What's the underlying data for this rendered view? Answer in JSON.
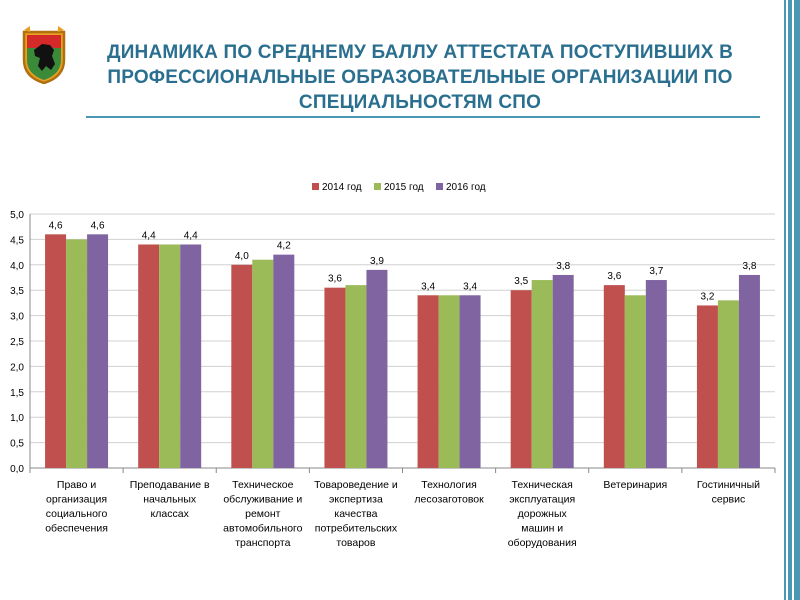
{
  "title": "Динамика по среднему баллу аттестата поступивших в профессиональные образовательные организации по специальностям СПО",
  "colors": {
    "title": "#2a6f8f",
    "stripe": "#4a98b4",
    "series": [
      "#c0504d",
      "#9bbb59",
      "#8064a2"
    ],
    "emblem_frame": "#e8a020",
    "emblem_green": "#3a8a3a",
    "emblem_red": "#d42a2a"
  },
  "emblem": {
    "name": "coat-of-arms-of-karelia"
  },
  "chart_data": {
    "type": "bar",
    "title": "",
    "xlabel": "",
    "ylabel": "",
    "ylim": [
      0,
      5
    ],
    "yticks": [
      "0,0",
      "0,5",
      "1,0",
      "1,5",
      "2,0",
      "2,5",
      "3,0",
      "3,5",
      "4,0",
      "4,5",
      "5,0"
    ],
    "grid": true,
    "legend": "top-center",
    "categories": [
      [
        "Право и",
        "организация",
        "социального",
        "обеспечения"
      ],
      [
        "Преподавание в",
        "начальных",
        "классах"
      ],
      [
        "Техническое",
        "обслуживание и",
        "ремонт",
        "автомобильного",
        "транспорта"
      ],
      [
        "Товароведение и",
        "экспертиза",
        "качества",
        "потребительских",
        "товаров"
      ],
      [
        "Технология",
        "лесозаготовок"
      ],
      [
        "Техническая",
        "эксплуатация",
        "дорожных",
        "машин и",
        "оборудования"
      ],
      [
        "Ветеринария"
      ],
      [
        "Гостиничный",
        "сервис"
      ]
    ],
    "series": [
      {
        "name": "2014 год",
        "values": [
          4.6,
          4.4,
          4.0,
          3.55,
          3.4,
          3.5,
          3.6,
          3.2
        ],
        "labels": [
          "4,6",
          "4,4",
          "4,0",
          "3,6",
          "3,4",
          "3,5",
          "3,6",
          "3,2"
        ]
      },
      {
        "name": "2015 год",
        "values": [
          4.5,
          4.4,
          4.1,
          3.6,
          3.4,
          3.7,
          3.4,
          3.3
        ],
        "labels": [
          "",
          "",
          "",
          "",
          "",
          "",
          "",
          ""
        ]
      },
      {
        "name": "2016 год",
        "values": [
          4.6,
          4.4,
          4.2,
          3.9,
          3.4,
          3.8,
          3.7,
          3.8
        ],
        "labels": [
          "4,6",
          "4,4",
          "4,2",
          "3,9",
          "3,4",
          "3,8",
          "3,7",
          "3,8"
        ]
      }
    ]
  }
}
